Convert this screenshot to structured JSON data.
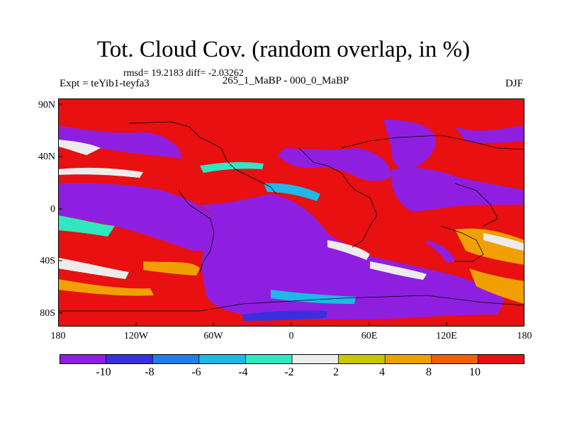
{
  "title": "Tot. Cloud Cov. (random overlap, in %)",
  "stats": "rmsd= 19.2183 diff= -2.03262",
  "subtitle": "265_1_MaBP - 000_0_MaBP",
  "experiment": "Expt = teYib1-teyfa3",
  "season": "DJF",
  "lat_ticks": [
    "90N",
    "40N",
    "0",
    "40S",
    "80S"
  ],
  "lon_ticks": [
    "180",
    "120W",
    "60W",
    "0",
    "60E",
    "120E",
    "180"
  ],
  "colorbar": {
    "labels": [
      "-10",
      "-8",
      "-6",
      "-4",
      "-2",
      "2",
      "4",
      "8",
      "10"
    ],
    "colors": [
      "#8f1fe0",
      "#3a2fe0",
      "#1f7fe8",
      "#1fb8e8",
      "#2ee8c0",
      "#ececec",
      "#c8c800",
      "#f0a000",
      "#f06000",
      "#e81010"
    ]
  },
  "map": {
    "field_colors": {
      "strong_negative": "#8f1fe0",
      "negative": "#3a2fe0",
      "neutral": "#ececec",
      "positive": "#f0a000",
      "strong_positive": "#e81010"
    }
  }
}
